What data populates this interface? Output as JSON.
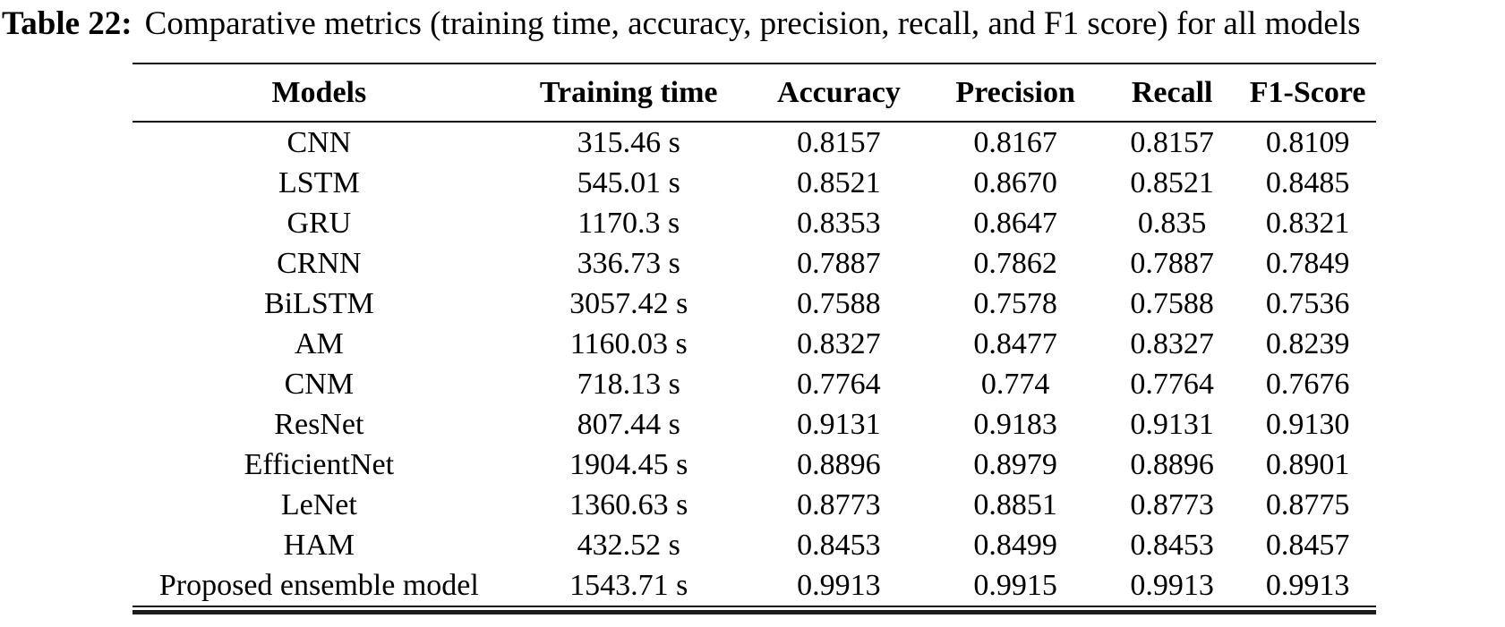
{
  "caption": {
    "label": "Table 22:",
    "text": "Comparative metrics (training time, accuracy, precision, recall, and F1 score) for all models"
  },
  "chart_data": {
    "type": "table",
    "title": "Comparative metrics (training time, accuracy, precision, recall, and F1 score) for all models",
    "columns": [
      "Models",
      "Training time",
      "Accuracy",
      "Precision",
      "Recall",
      "F1-Score"
    ],
    "rows": [
      [
        "CNN",
        "315.46 s",
        "0.8157",
        "0.8167",
        "0.8157",
        "0.8109"
      ],
      [
        "LSTM",
        "545.01 s",
        "0.8521",
        "0.8670",
        "0.8521",
        "0.8485"
      ],
      [
        "GRU",
        "1170.3 s",
        "0.8353",
        "0.8647",
        "0.835",
        "0.8321"
      ],
      [
        "CRNN",
        "336.73 s",
        "0.7887",
        "0.7862",
        "0.7887",
        "0.7849"
      ],
      [
        "BiLSTM",
        "3057.42 s",
        "0.7588",
        "0.7578",
        "0.7588",
        "0.7536"
      ],
      [
        "AM",
        "1160.03 s",
        "0.8327",
        "0.8477",
        "0.8327",
        "0.8239"
      ],
      [
        "CNM",
        "718.13 s",
        "0.7764",
        "0.774",
        "0.7764",
        "0.7676"
      ],
      [
        "ResNet",
        "807.44 s",
        "0.9131",
        "0.9183",
        "0.9131",
        "0.9130"
      ],
      [
        "EfficientNet",
        "1904.45 s",
        "0.8896",
        "0.8979",
        "0.8896",
        "0.8901"
      ],
      [
        "LeNet",
        "1360.63 s",
        "0.8773",
        "0.8851",
        "0.8773",
        "0.8775"
      ],
      [
        "HAM",
        "432.52 s",
        "0.8453",
        "0.8499",
        "0.8453",
        "0.8457"
      ],
      [
        "Proposed ensemble model",
        "1543.71 s",
        "0.9913",
        "0.9915",
        "0.9913",
        "0.9913"
      ]
    ],
    "colors": {
      "text": "#000000",
      "rule": "#0a0a0a",
      "background": "#ffffff"
    }
  }
}
